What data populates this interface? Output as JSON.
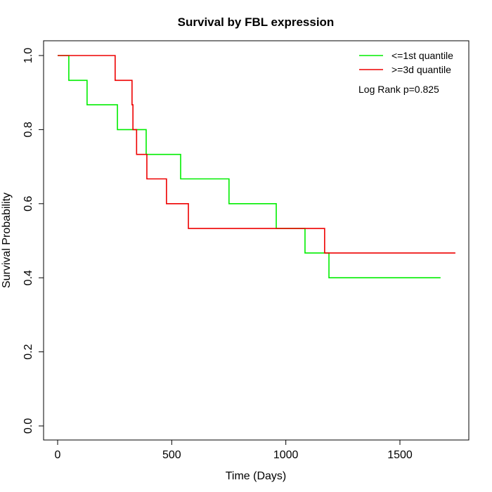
{
  "chart_data": {
    "type": "line",
    "subtype": "kaplan-meier step",
    "title": "Survival by FBL expression",
    "xlabel": "Time (Days)",
    "ylabel": "Survival Probability",
    "xlim": [
      -60,
      1800
    ],
    "ylim": [
      -0.03,
      1.05
    ],
    "xticks": [
      0,
      500,
      1000,
      1500
    ],
    "yticks": [
      0.0,
      0.2,
      0.4,
      0.6,
      0.8,
      1.0
    ],
    "ytick_labels": [
      "0.0",
      "0.2",
      "0.4",
      "0.6",
      "0.8",
      "1.0"
    ],
    "grid": false,
    "legend_position": "top-right",
    "annotation": "Log Rank p=0.825",
    "series": [
      {
        "name": "<=1st quantile",
        "color": "#00ee00",
        "x": [
          0,
          49,
          129,
          262,
          388,
          539,
          751,
          958,
          1084,
          1189,
          1678
        ],
        "y": [
          1.0,
          0.933,
          0.867,
          0.8,
          0.733,
          0.667,
          0.6,
          0.533,
          0.467,
          0.4,
          0.4
        ]
      },
      {
        "name": ">=3d quantile",
        "color": "#ee0000",
        "x": [
          0,
          252,
          326,
          330,
          346,
          391,
          477,
          573,
          1170,
          1743
        ],
        "y": [
          1.0,
          0.933,
          0.867,
          0.8,
          0.733,
          0.667,
          0.6,
          0.533,
          0.467,
          0.467
        ]
      }
    ]
  }
}
